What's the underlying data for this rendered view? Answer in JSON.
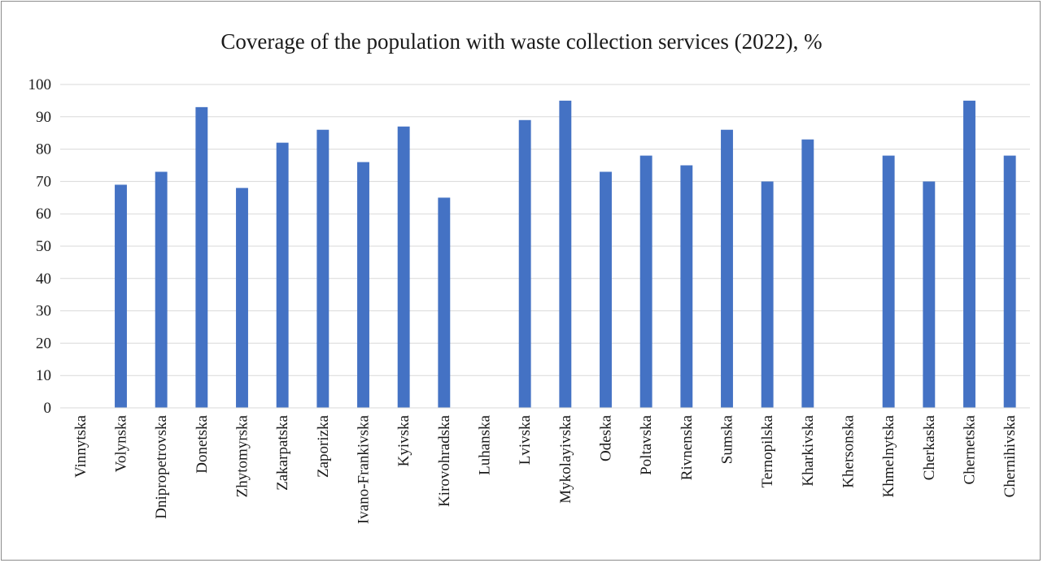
{
  "chart_data": {
    "type": "bar",
    "title": "Coverage of the population with waste collection services (2022), %",
    "xlabel": "",
    "ylabel": "",
    "ylim": [
      0,
      100
    ],
    "yticks": [
      "0",
      "10",
      "20",
      "30",
      "40",
      "50",
      "60",
      "70",
      "80",
      "90",
      "100"
    ],
    "grid": "horizontal",
    "legend": "none",
    "bar_color": "#4472c4",
    "categories": [
      "Vinnytska",
      "Volynska",
      "Dnipropetrovska",
      "Donetska",
      "Zhytomyrska",
      "Zakarpatska",
      "Zaporizka",
      "Ivano-Frankivska",
      "Kyivska",
      "Kirovohradska",
      "Luhanska",
      "Lvivska",
      "Mykolayivska",
      "Odeska",
      "Poltavska",
      "Rivnenska",
      "Sumska",
      "Ternopilska",
      "Kharkivska",
      "Khersonska",
      "Khmelnytska",
      "Cherkaska",
      "Chernetska",
      "Chernihivska"
    ],
    "values": [
      0,
      69,
      73,
      93,
      68,
      82,
      86,
      76,
      87,
      65,
      0,
      89,
      95,
      73,
      78,
      75,
      86,
      70,
      83,
      0,
      78,
      70,
      95,
      78
    ]
  }
}
